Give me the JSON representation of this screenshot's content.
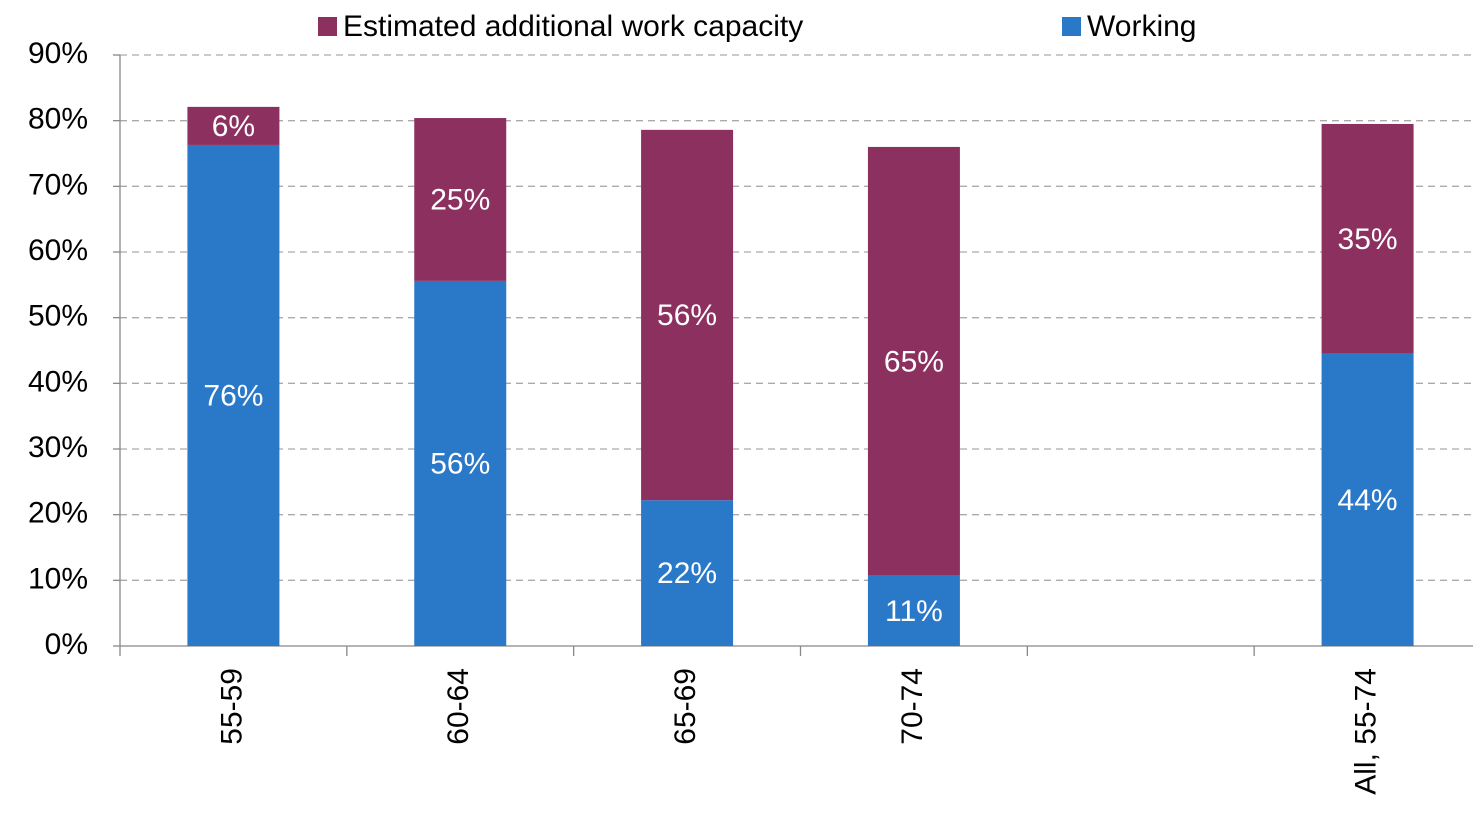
{
  "chart_data": {
    "type": "stacked_bar",
    "categories": [
      "55-59",
      "60-64",
      "65-69",
      "70-74",
      null,
      "All, 55-74"
    ],
    "series": [
      {
        "name": "Estimated additional work capacity",
        "color": "#8c3060",
        "values": [
          5.8,
          24.8,
          56.4,
          65.3,
          null,
          35.0
        ],
        "value_labels": [
          "6%",
          "25%",
          "56%",
          "65%",
          null,
          "35%"
        ]
      },
      {
        "name": "Working",
        "color": "#2a78c8",
        "values": [
          76.3,
          55.6,
          22.2,
          10.7,
          null,
          44.5
        ],
        "value_labels": [
          "76%",
          "56%",
          "22%",
          "11%",
          null,
          "44%"
        ]
      }
    ],
    "ylim": [
      0,
      90
    ],
    "yticks": [
      {
        "value": 0,
        "label": "0%"
      },
      {
        "value": 10,
        "label": "10%"
      },
      {
        "value": 20,
        "label": "20%"
      },
      {
        "value": 30,
        "label": "30%"
      },
      {
        "value": 40,
        "label": "40%"
      },
      {
        "value": 50,
        "label": "50%"
      },
      {
        "value": 60,
        "label": "60%"
      },
      {
        "value": 70,
        "label": "70%"
      },
      {
        "value": 80,
        "label": "80%"
      },
      {
        "value": 90,
        "label": "90%"
      }
    ],
    "grid": true,
    "legend": "top"
  }
}
